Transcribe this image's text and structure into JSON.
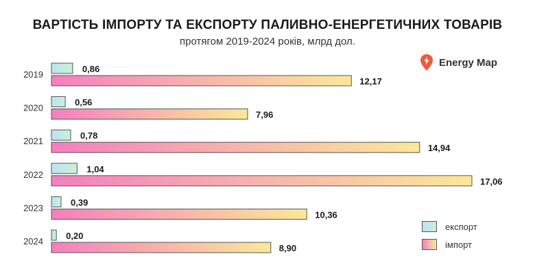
{
  "chart_data": {
    "type": "bar",
    "orientation": "horizontal",
    "title": "ВАРТІСТЬ ІМПОРТУ ТА ЕКСПОРТУ ПАЛИВНО-ЕНЕРГЕТИЧНИХ ТОВАРІВ",
    "subtitle": "протягом 2019-2024 років, млрд дол.",
    "categories": [
      "2019",
      "2020",
      "2021",
      "2022",
      "2023",
      "2024"
    ],
    "series": [
      {
        "name": "експорт",
        "values": [
          0.86,
          0.56,
          0.78,
          1.04,
          0.39,
          0.2
        ],
        "labels": [
          "0,86",
          "0,56",
          "0,78",
          "1,04",
          "0,39",
          "0,20"
        ],
        "gradient": [
          "#bfe0f5",
          "#c7f2d4"
        ]
      },
      {
        "name": "імпорт",
        "values": [
          12.17,
          7.96,
          14.94,
          17.06,
          10.36,
          8.9
        ],
        "labels": [
          "12,17",
          "7,96",
          "14,94",
          "17,06",
          "10,36",
          "8,90"
        ],
        "gradient": [
          "#f47fbf",
          "#fbe898"
        ]
      }
    ],
    "xlim": [
      0,
      17.06
    ],
    "grid": false,
    "axes_visible": false,
    "legend_position": "bottom-right"
  },
  "brand": {
    "name": "Energy Map",
    "icon": "map-pin-bolt-icon",
    "color": "#f05a3a"
  }
}
